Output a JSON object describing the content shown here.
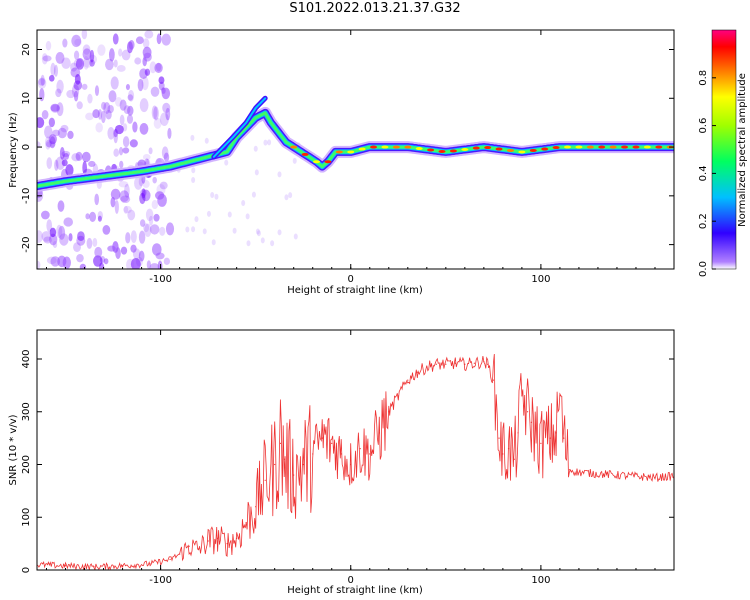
{
  "page": {
    "title": "S101.2022.013.21.37.G32"
  },
  "chart_data": [
    {
      "type": "heatmap",
      "title": "S101.2022.013.21.37.G32",
      "xlabel": "Height of straight line (km)",
      "ylabel": "Frequency (Hz)",
      "xlim": [
        -165,
        170
      ],
      "ylim": [
        -25,
        24
      ],
      "x_ticks": [
        -100,
        0,
        100
      ],
      "x_tick_labels": [
        "-100",
        "0",
        "100"
      ],
      "y_ticks": [
        -20,
        -10,
        0,
        10,
        20
      ],
      "y_tick_labels": [
        "-20",
        "-10",
        "0",
        "10",
        "20"
      ],
      "ridge": {
        "x": [
          -165,
          -150,
          -130,
          -110,
          -95,
          -85,
          -75,
          -65,
          -60,
          -55,
          -50,
          -45,
          -42,
          -38,
          -34,
          -30,
          -26,
          -22,
          -18,
          -15,
          -12,
          -8,
          -4,
          0,
          10,
          30,
          50,
          70,
          90,
          110,
          130,
          150,
          170
        ],
        "y": [
          -8,
          -7,
          -6,
          -5,
          -4,
          -3,
          -2,
          -1,
          2,
          4,
          6,
          7,
          5,
          3,
          1,
          0,
          -1,
          -2,
          -3,
          -4,
          -3,
          -1,
          -1,
          -1,
          0,
          0,
          -1,
          0,
          -1,
          0,
          0,
          0,
          0
        ]
      },
      "colorbar": {
        "label": "Normalized spectral amplitude",
        "range": [
          0,
          1
        ],
        "ticks": [
          0.0,
          0.2,
          0.4,
          0.6,
          0.8
        ],
        "tick_labels": [
          "0.0",
          "0.2",
          "0.4",
          "0.6",
          "0.8"
        ],
        "colormap": [
          "#ffffff",
          "#7f00ff",
          "#0000ff",
          "#00c0ff",
          "#00ff80",
          "#80ff00",
          "#ffff00",
          "#ff8000",
          "#ff0000",
          "#ff0080"
        ]
      }
    },
    {
      "type": "line",
      "xlabel": "Height of straight line (km)",
      "ylabel": "SNR (10 * v/v)",
      "xlim": [
        -165,
        170
      ],
      "ylim": [
        0,
        455
      ],
      "x_ticks": [
        -100,
        0,
        100
      ],
      "x_tick_labels": [
        "-100",
        "0",
        "100"
      ],
      "y_ticks": [
        0,
        100,
        200,
        300,
        400
      ],
      "y_tick_labels": [
        "0",
        "100",
        "200",
        "300",
        "400"
      ],
      "color": "#ee3333",
      "x": [
        -165,
        -150,
        -135,
        -120,
        -105,
        -95,
        -90,
        -85,
        -80,
        -75,
        -70,
        -65,
        -60,
        -55,
        -50,
        -45,
        -40,
        -37,
        -35,
        -30,
        -25,
        -20,
        -15,
        -10,
        -5,
        0,
        5,
        10,
        15,
        20,
        25,
        30,
        35,
        40,
        45,
        50,
        55,
        60,
        65,
        70,
        72,
        75,
        78,
        80,
        83,
        86,
        88,
        90,
        93,
        95,
        100,
        105,
        108,
        110,
        112,
        115,
        120,
        140,
        160,
        170
      ],
      "y": [
        10,
        8,
        6,
        8,
        12,
        20,
        30,
        45,
        40,
        55,
        60,
        50,
        60,
        90,
        120,
        170,
        200,
        240,
        210,
        180,
        200,
        220,
        250,
        240,
        220,
        200,
        230,
        220,
        260,
        300,
        330,
        360,
        375,
        385,
        390,
        390,
        392,
        390,
        392,
        395,
        390,
        360,
        250,
        220,
        230,
        210,
        260,
        330,
        300,
        280,
        240,
        250,
        260,
        330,
        250,
        190,
        185,
        180,
        175,
        178
      ]
    }
  ]
}
